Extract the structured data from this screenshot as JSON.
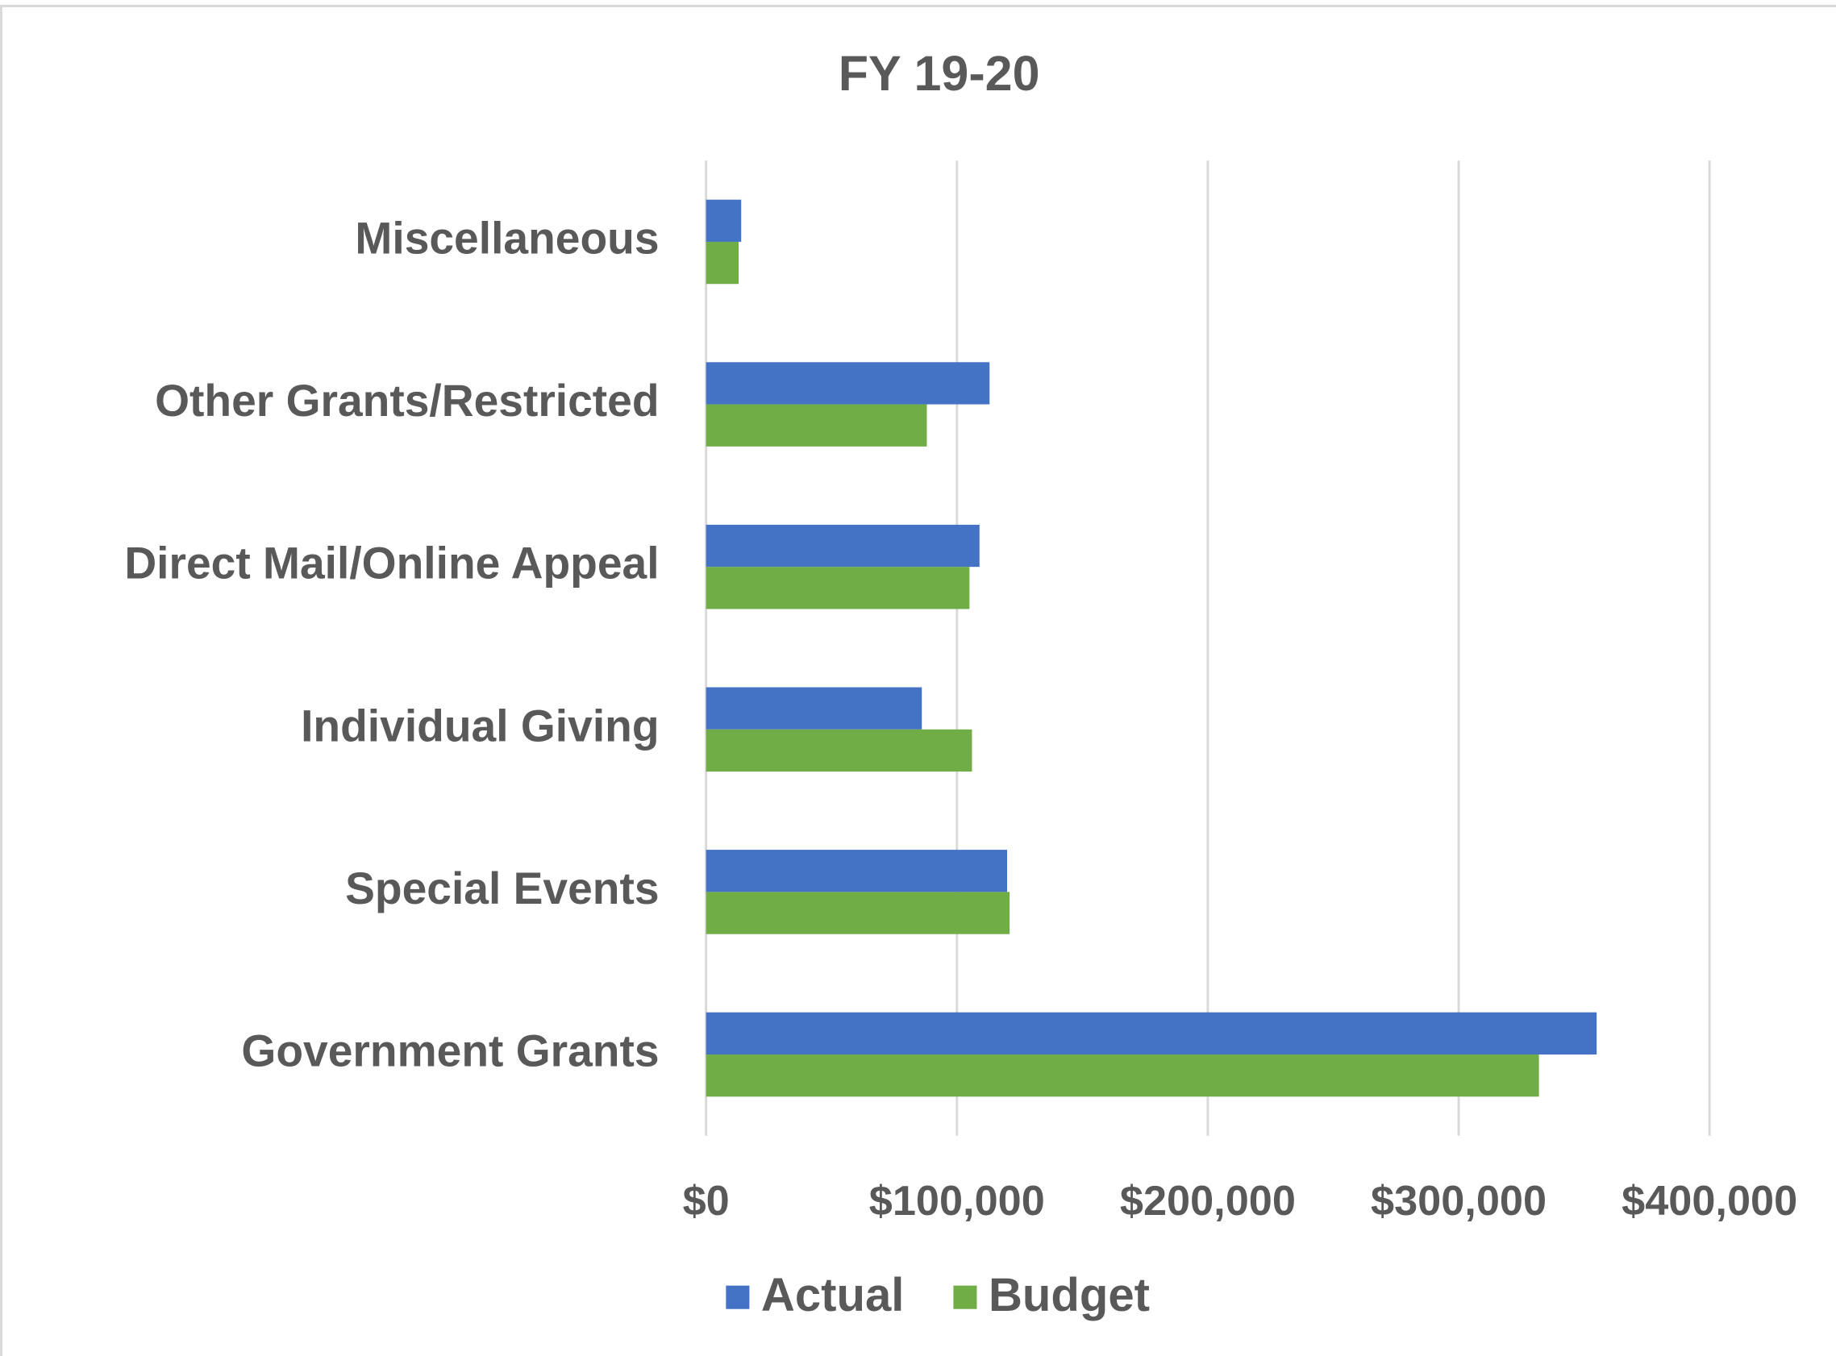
{
  "chart_data": {
    "type": "hbar",
    "title": "FY 19-20",
    "categories": [
      "Miscellaneous",
      "Other Grants/Restricted",
      "Direct Mail/Online Appeal",
      "Individual Giving",
      "Special Events",
      "Government Grants"
    ],
    "series": [
      {
        "name": "Actual",
        "color": "#4472c4",
        "values": [
          14000,
          113000,
          109000,
          86000,
          120000,
          355000
        ]
      },
      {
        "name": "Budget",
        "color": "#70ad47",
        "values": [
          13000,
          88000,
          105000,
          106000,
          121000,
          332000
        ]
      }
    ],
    "xlim": [
      0,
      400000
    ],
    "xticks": [
      {
        "value": 0,
        "label": "$0"
      },
      {
        "value": 100000,
        "label": "$100,000"
      },
      {
        "value": 200000,
        "label": "$200,000"
      },
      {
        "value": 300000,
        "label": "$300,000"
      },
      {
        "value": 400000,
        "label": "$400,000"
      }
    ],
    "grid": true,
    "legend": "bottom"
  }
}
